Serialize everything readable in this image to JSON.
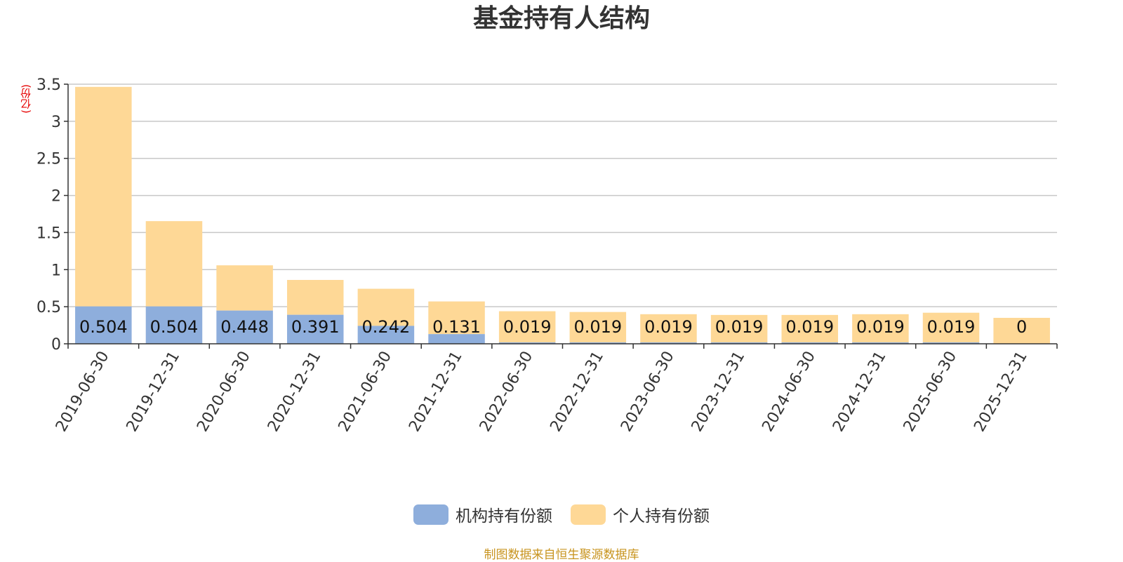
{
  "colors": {
    "institution": "#8eaedc",
    "individual": "#fed896",
    "grid": "#c8c8c8",
    "axis": "#333333",
    "source_text": "#c8941f",
    "unit_text": "#e60000"
  },
  "chart_data": {
    "type": "bar",
    "stacked": true,
    "title": "基金持有人结构",
    "unit_label": "(亿份)",
    "ylim": [
      0,
      3.5
    ],
    "yticks": [
      "0",
      "0.5",
      "1",
      "1.5",
      "2",
      "2.5",
      "3",
      "3.5"
    ],
    "grid": true,
    "legend_position": "bottom-center",
    "categories": [
      "2019-06-30",
      "2019-12-31",
      "2020-06-30",
      "2020-12-31",
      "2021-06-30",
      "2021-12-31",
      "2022-06-30",
      "2022-12-31",
      "2023-06-30",
      "2023-12-31",
      "2024-06-30",
      "2024-12-31",
      "2025-06-30",
      "2025-12-31"
    ],
    "series": [
      {
        "name": "机构持有份额",
        "values": [
          0.504,
          0.504,
          0.448,
          0.391,
          0.242,
          0.131,
          0.019,
          0.019,
          0.019,
          0.019,
          0.019,
          0.019,
          0.019,
          0
        ],
        "labels": [
          "0.504",
          "0.504",
          "0.448",
          "0.391",
          "0.242",
          "0.131",
          "0.019",
          "0.019",
          "0.019",
          "0.019",
          "0.019",
          "0.019",
          "0.019",
          "0"
        ]
      },
      {
        "name": "个人持有份额",
        "values": [
          2.96,
          1.15,
          0.61,
          0.47,
          0.5,
          0.44,
          0.42,
          0.41,
          0.38,
          0.37,
          0.37,
          0.38,
          0.4,
          0.35
        ]
      }
    ]
  },
  "source": "制图数据来自恒生聚源数据库"
}
